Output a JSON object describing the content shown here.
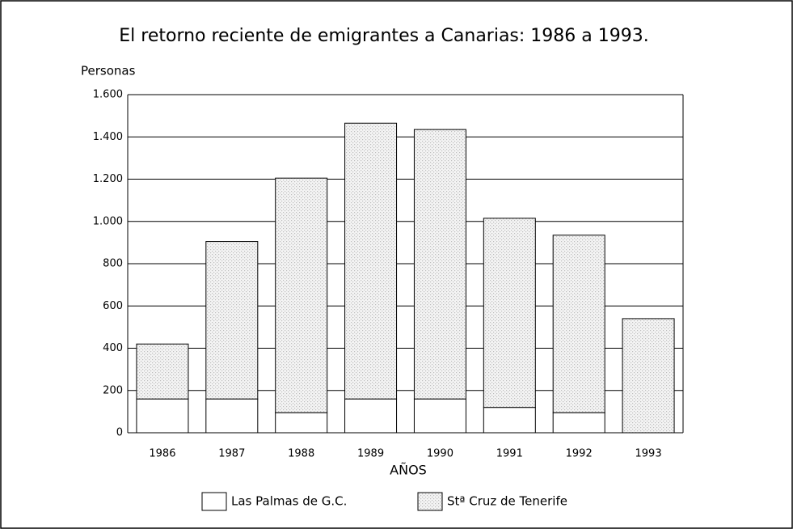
{
  "chart_data": {
    "type": "stacked_bar",
    "title": "El retorno reciente de emigrantes a Canarias: 1986 a 1993.",
    "y_label": "Personas",
    "x_label": "AÑOS",
    "categories": [
      "1986",
      "1987",
      "1988",
      "1989",
      "1990",
      "1991",
      "1992",
      "1993"
    ],
    "series": [
      {
        "name": "Las Palmas de G.C.",
        "color": "#ffffff",
        "values": [
          160,
          160,
          95,
          160,
          160,
          120,
          95,
          0
        ]
      },
      {
        "name": "Stª Cruz de Tenerife",
        "color": "#bdbdbd",
        "values": [
          260,
          745,
          1110,
          1305,
          1275,
          895,
          840,
          540
        ]
      }
    ],
    "ylim": [
      0,
      1600
    ],
    "yticks": [
      0,
      200,
      400,
      600,
      800,
      {
        "value": 1000,
        "label": "1.000"
      },
      {
        "value": 1200,
        "label": "1.200"
      },
      {
        "value": 1400,
        "label": "1.400"
      },
      {
        "value": 1600,
        "label": "1.600"
      }
    ],
    "grid": true
  }
}
